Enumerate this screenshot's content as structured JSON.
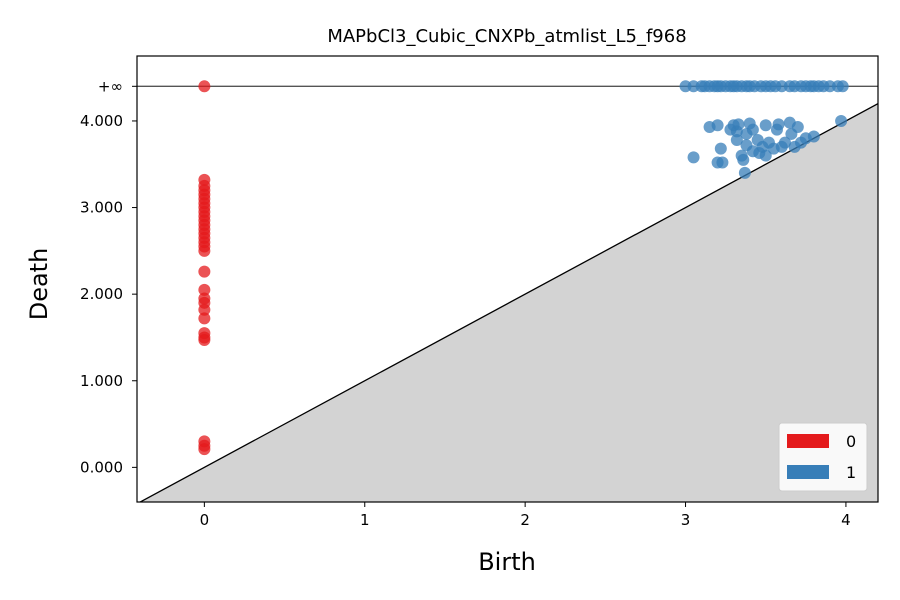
{
  "chart_data": {
    "type": "scatter",
    "title": "MAPbCl3_Cubic_CNXPb_atmlist_L5_f968",
    "xlabel": "Birth",
    "ylabel": "Death",
    "xlim": [
      -0.42,
      4.2
    ],
    "ylim": [
      -0.4,
      4.75
    ],
    "infinity_value": 4.4,
    "infinity_label": "+∞",
    "xticks": [
      {
        "v": 0,
        "label": "0"
      },
      {
        "v": 1,
        "label": "1"
      },
      {
        "v": 2,
        "label": "2"
      },
      {
        "v": 3,
        "label": "3"
      },
      {
        "v": 4,
        "label": "4"
      }
    ],
    "yticks": [
      {
        "v": 0,
        "label": "0.000"
      },
      {
        "v": 1,
        "label": "1.000"
      },
      {
        "v": 2,
        "label": "2.000"
      },
      {
        "v": 3,
        "label": "3.000"
      },
      {
        "v": 4,
        "label": "4.000"
      }
    ],
    "diagonal": true,
    "legend_position": "lower-right",
    "series": [
      {
        "name": "0",
        "color": "#e41a1c",
        "points": [
          [
            0,
            4.4
          ],
          [
            0,
            3.32
          ],
          [
            0,
            3.25
          ],
          [
            0,
            3.2
          ],
          [
            0,
            3.15
          ],
          [
            0,
            3.1
          ],
          [
            0,
            3.05
          ],
          [
            0,
            3.0
          ],
          [
            0,
            2.95
          ],
          [
            0,
            2.9
          ],
          [
            0,
            2.85
          ],
          [
            0,
            2.8
          ],
          [
            0,
            2.75
          ],
          [
            0,
            2.7
          ],
          [
            0,
            2.65
          ],
          [
            0,
            2.6
          ],
          [
            0,
            2.55
          ],
          [
            0,
            2.5
          ],
          [
            0,
            2.26
          ],
          [
            0,
            2.05
          ],
          [
            0,
            1.95
          ],
          [
            0,
            1.9
          ],
          [
            0,
            1.82
          ],
          [
            0,
            1.72
          ],
          [
            0,
            1.55
          ],
          [
            0,
            1.5
          ],
          [
            0,
            1.47
          ],
          [
            0,
            0.3
          ],
          [
            0,
            0.25
          ],
          [
            0,
            0.21
          ]
        ]
      },
      {
        "name": "1",
        "color": "#377eb8",
        "points": [
          [
            3.0,
            4.4
          ],
          [
            3.05,
            4.4
          ],
          [
            3.1,
            4.4
          ],
          [
            3.12,
            4.4
          ],
          [
            3.15,
            4.4
          ],
          [
            3.18,
            4.4
          ],
          [
            3.2,
            4.4
          ],
          [
            3.22,
            4.4
          ],
          [
            3.25,
            4.4
          ],
          [
            3.28,
            4.4
          ],
          [
            3.3,
            4.4
          ],
          [
            3.32,
            4.4
          ],
          [
            3.35,
            4.4
          ],
          [
            3.38,
            4.4
          ],
          [
            3.4,
            4.4
          ],
          [
            3.43,
            4.4
          ],
          [
            3.47,
            4.4
          ],
          [
            3.5,
            4.4
          ],
          [
            3.53,
            4.4
          ],
          [
            3.56,
            4.4
          ],
          [
            3.6,
            4.4
          ],
          [
            3.65,
            4.4
          ],
          [
            3.68,
            4.4
          ],
          [
            3.72,
            4.4
          ],
          [
            3.75,
            4.4
          ],
          [
            3.78,
            4.4
          ],
          [
            3.8,
            4.4
          ],
          [
            3.83,
            4.4
          ],
          [
            3.86,
            4.4
          ],
          [
            3.9,
            4.4
          ],
          [
            3.95,
            4.4
          ],
          [
            3.98,
            4.4
          ],
          [
            3.05,
            3.58
          ],
          [
            3.15,
            3.93
          ],
          [
            3.2,
            3.95
          ],
          [
            3.2,
            3.52
          ],
          [
            3.22,
            3.68
          ],
          [
            3.23,
            3.52
          ],
          [
            3.28,
            3.9
          ],
          [
            3.3,
            3.95
          ],
          [
            3.32,
            3.88
          ],
          [
            3.32,
            3.78
          ],
          [
            3.33,
            3.96
          ],
          [
            3.35,
            3.6
          ],
          [
            3.36,
            3.55
          ],
          [
            3.37,
            3.4
          ],
          [
            3.38,
            3.85
          ],
          [
            3.38,
            3.72
          ],
          [
            3.4,
            3.97
          ],
          [
            3.42,
            3.9
          ],
          [
            3.42,
            3.65
          ],
          [
            3.45,
            3.78
          ],
          [
            3.46,
            3.63
          ],
          [
            3.48,
            3.7
          ],
          [
            3.5,
            3.95
          ],
          [
            3.5,
            3.6
          ],
          [
            3.52,
            3.75
          ],
          [
            3.55,
            3.68
          ],
          [
            3.57,
            3.9
          ],
          [
            3.58,
            3.96
          ],
          [
            3.6,
            3.7
          ],
          [
            3.62,
            3.75
          ],
          [
            3.65,
            3.98
          ],
          [
            3.66,
            3.85
          ],
          [
            3.68,
            3.7
          ],
          [
            3.7,
            3.93
          ],
          [
            3.72,
            3.75
          ],
          [
            3.75,
            3.8
          ],
          [
            3.8,
            3.82
          ],
          [
            3.97,
            4.0
          ]
        ]
      }
    ]
  }
}
